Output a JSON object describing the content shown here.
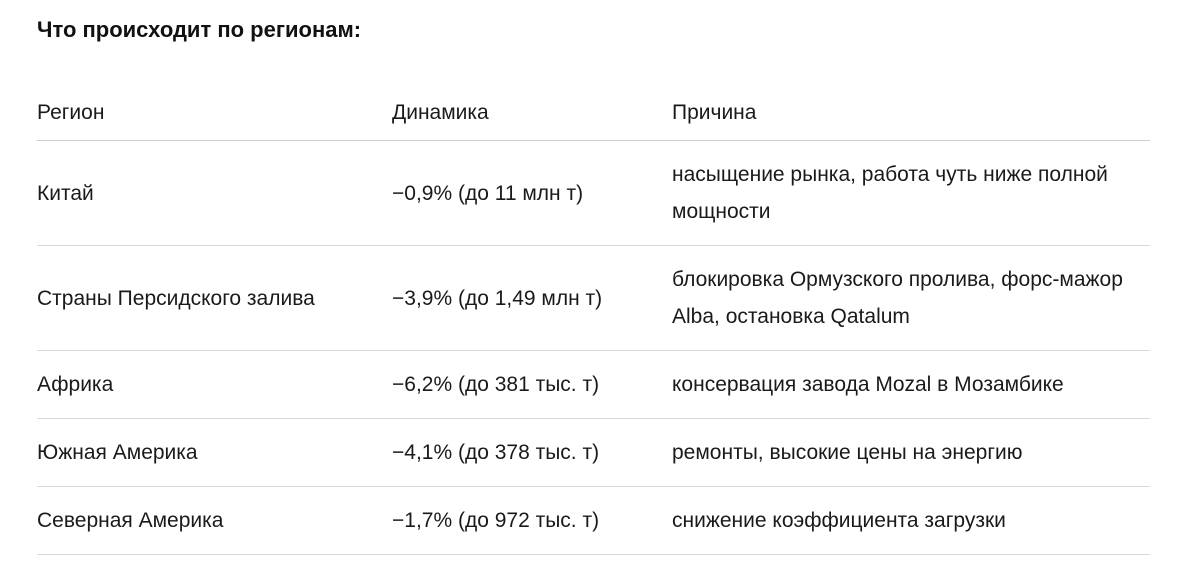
{
  "heading": "Что происходит по регионам:",
  "table": {
    "headers": [
      "Регион",
      "Динамика",
      "Причина"
    ],
    "rows": [
      [
        "Китай",
        "−0,9% (до 11 млн т)",
        "насыщение рынка, работа чуть ниже полной мощности"
      ],
      [
        "Страны Персидского залива",
        "−3,9% (до 1,49 млн т)",
        "блокировка Ормузского пролива, форс-мажор Alba, остановка Qatalum"
      ],
      [
        "Африка",
        "−6,2% (до 381 тыс. т)",
        "консервация завода Mozal в Мозамбике"
      ],
      [
        "Южная Америка",
        "−4,1% (до 378 тыс. т)",
        "ремонты, высокие цены на энергию"
      ],
      [
        "Северная Америка",
        "−1,7% (до 972 тыс. т)",
        "снижение коэффициента загрузки"
      ]
    ]
  }
}
